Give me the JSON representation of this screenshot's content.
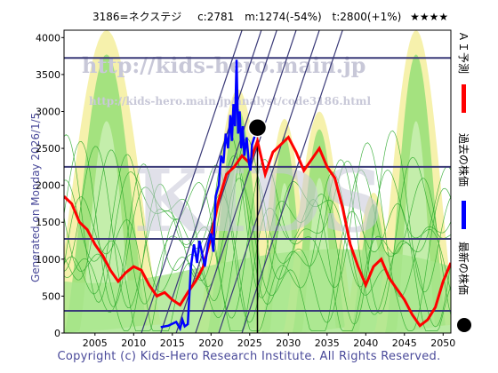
{
  "header": {
    "code_name": "3186=ネクステジ",
    "current": "c:2781",
    "min": "m:1274(-54%)",
    "target": "t:2800(+1%)",
    "stars": "★★★★"
  },
  "generated": "Generated on Monday 2026/1/5.",
  "credit": "Copyright (c) Kids-Hero Research Institute. All Rights Reserved.",
  "watermarks": {
    "url1": "http://kids-hero.main.jp",
    "url2": "http://kids-hero.main.jp/analyst/code3186.html",
    "big": "KIDS"
  },
  "legend": {
    "ai_forecast": "ＡＩ予測",
    "past_price": "過去の株価",
    "latest_price": "最新の株価"
  },
  "colors": {
    "forecast": "#ff0000",
    "past": "#0000ff",
    "latest": "#000000",
    "hline": "#3a3a78",
    "band_green": "#9be07a",
    "band_yellow": "#f5f0a8",
    "line_green": "#2aa82a"
  },
  "chart_data": {
    "type": "line",
    "x_ticks": [
      "2005",
      "2010",
      "2015",
      "2020",
      "2025",
      "2030",
      "2035",
      "2040",
      "2045",
      "2050"
    ],
    "y_ticks": [
      "0",
      "500",
      "1000",
      "1500",
      "2000",
      "2500",
      "3000",
      "3500",
      "4000"
    ],
    "xlim": [
      2001,
      2051
    ],
    "ylim": [
      0,
      4100
    ],
    "horizontal_levels": [
      3725,
      2250,
      1274,
      300
    ],
    "latest_point": {
      "x": 2026.0,
      "y": 2781
    },
    "past_price": {
      "x": [
        2013.5,
        2014.5,
        2015.5,
        2016.0,
        2016.3,
        2016.6,
        2017.0,
        2017.4,
        2017.8,
        2018.2,
        2018.5,
        2018.8,
        2019.2,
        2019.6,
        2020.0,
        2020.3,
        2020.6,
        2021.0,
        2021.3,
        2021.6,
        2021.9,
        2022.2,
        2022.5,
        2022.7,
        2022.9,
        2023.1,
        2023.3,
        2023.5,
        2023.7,
        2023.9,
        2024.1,
        2024.3,
        2024.6,
        2024.9,
        2025.1,
        2025.3,
        2025.6,
        2025.8,
        2026.0
      ],
      "y": [
        80,
        100,
        150,
        60,
        180,
        90,
        120,
        900,
        1200,
        950,
        1250,
        1100,
        900,
        1200,
        1350,
        1100,
        1850,
        2000,
        2400,
        2300,
        2700,
        2500,
        2950,
        2600,
        3100,
        2800,
        3700,
        2700,
        3000,
        2500,
        2800,
        2400,
        2650,
        2300,
        2200,
        2550,
        2650,
        2700,
        2781
      ]
    },
    "ai_forecast": {
      "x": [
        2001,
        2002,
        2003,
        2004,
        2005,
        2006,
        2007,
        2008,
        2009,
        2010,
        2011,
        2012,
        2013,
        2014,
        2015,
        2016,
        2017,
        2018,
        2019,
        2020,
        2021,
        2022,
        2023,
        2024,
        2025,
        2026,
        2027,
        2028,
        2029,
        2030,
        2031,
        2032,
        2033,
        2034,
        2035,
        2036,
        2037,
        2038,
        2039,
        2040,
        2041,
        2042,
        2043,
        2044,
        2045,
        2046,
        2047,
        2048,
        2049,
        2050,
        2051
      ],
      "y": [
        1850,
        1750,
        1500,
        1400,
        1200,
        1050,
        850,
        700,
        820,
        900,
        850,
        650,
        500,
        550,
        450,
        380,
        550,
        700,
        900,
        1300,
        1800,
        2150,
        2250,
        2400,
        2300,
        2600,
        2150,
        2450,
        2550,
        2650,
        2450,
        2200,
        2350,
        2500,
        2250,
        2100,
        1700,
        1200,
        900,
        650,
        900,
        1000,
        750,
        600,
        450,
        250,
        100,
        180,
        350,
        700,
        950
      ]
    }
  }
}
